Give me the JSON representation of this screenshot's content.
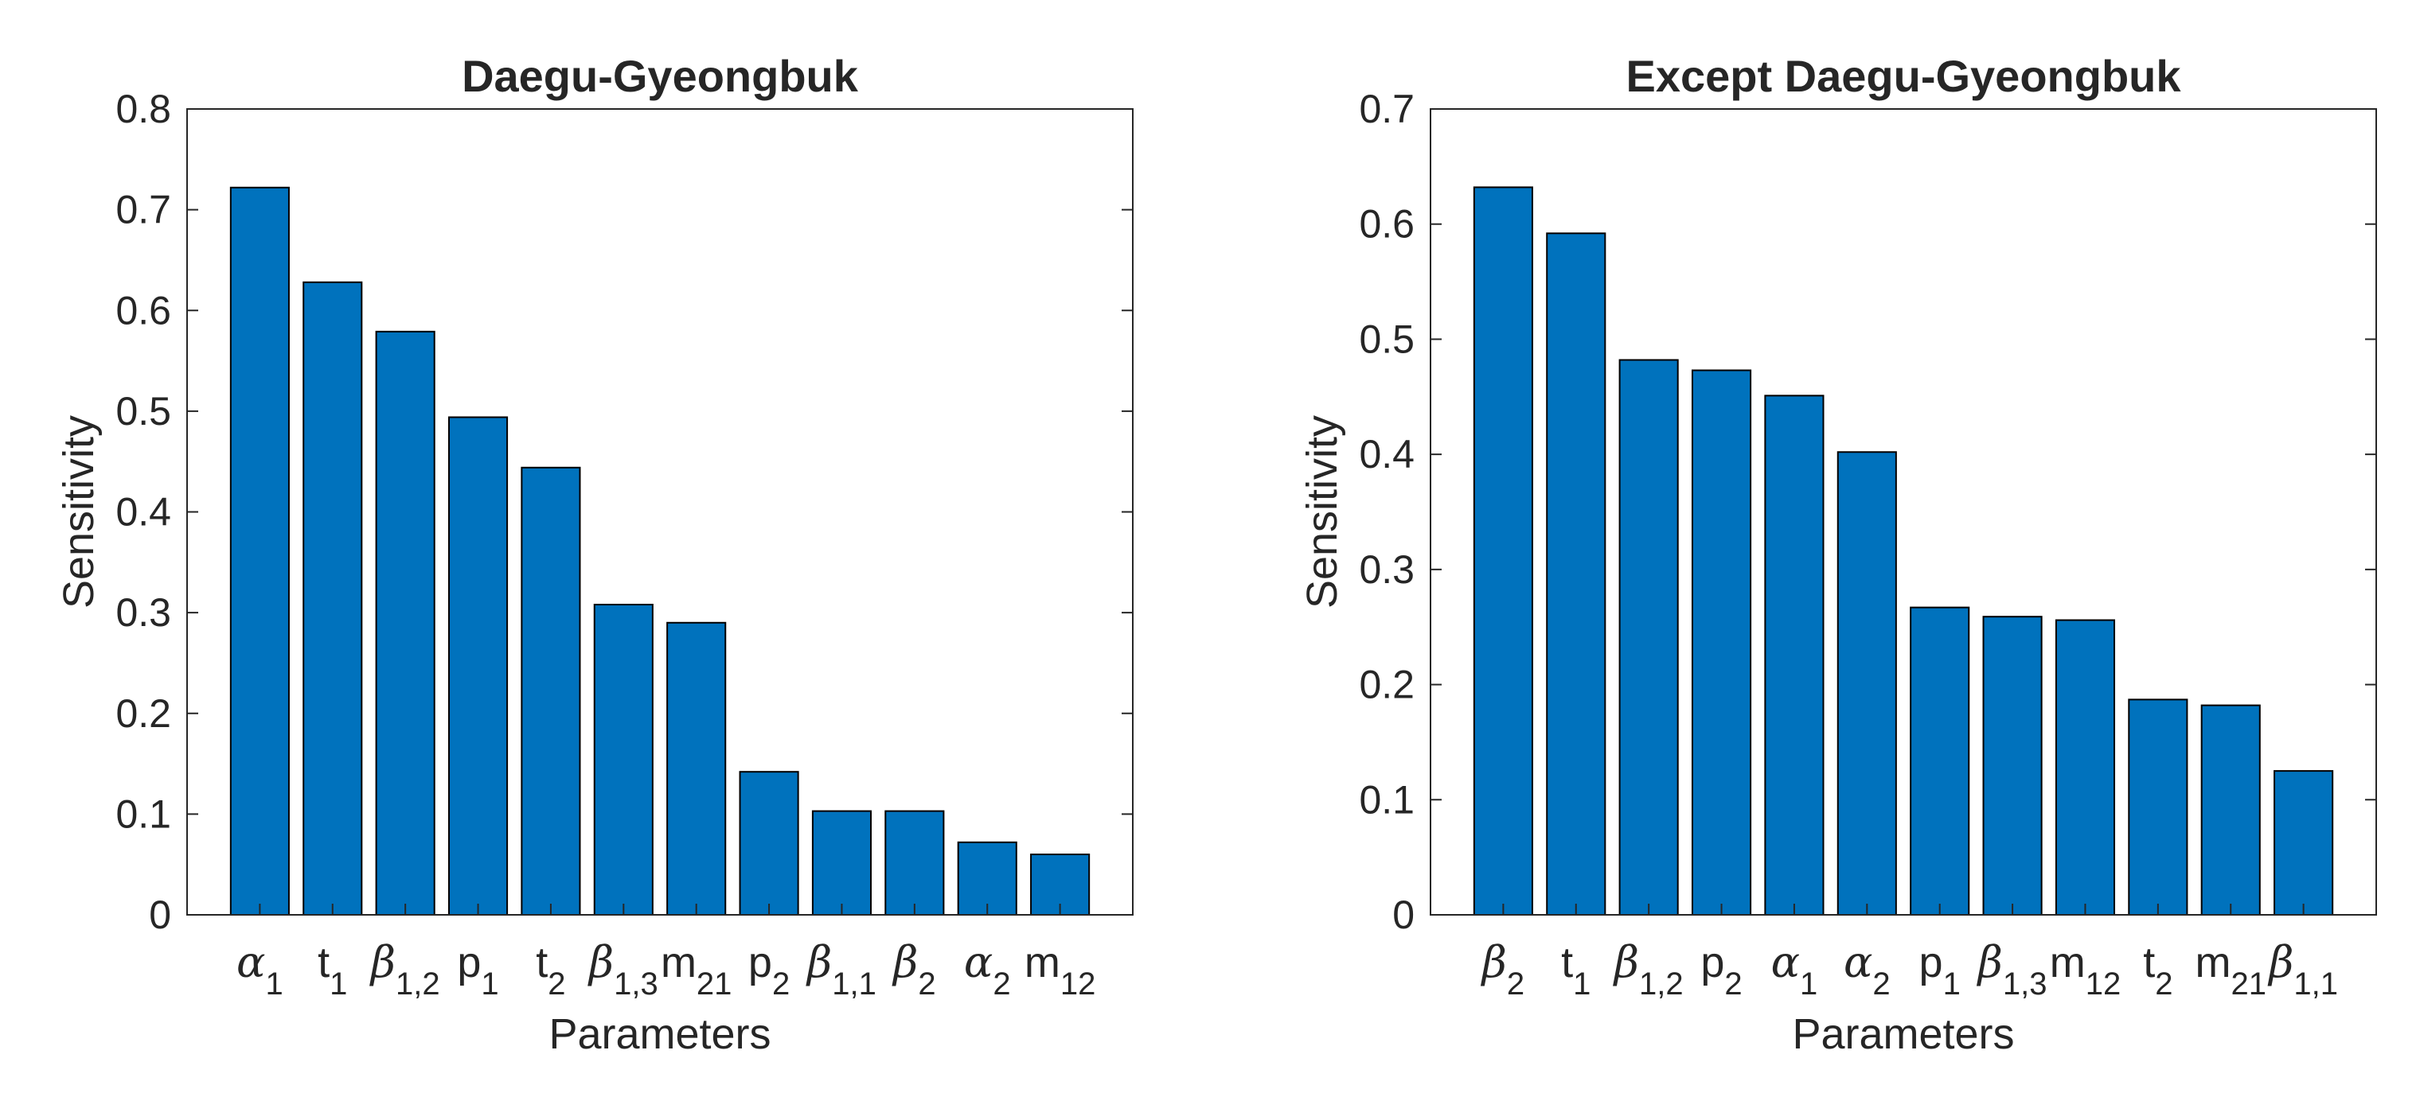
{
  "chart_data": [
    {
      "type": "bar",
      "title": "Daegu-Gyeongbuk",
      "xlabel": "Parameters",
      "ylabel": "Sensitivity",
      "ylim": [
        0,
        0.8
      ],
      "yticks": [
        "0",
        "0.1",
        "0.2",
        "0.3",
        "0.4",
        "0.5",
        "0.6",
        "0.7",
        "0.8"
      ],
      "categories": [
        {
          "base": "α",
          "sub": "1",
          "greek": true
        },
        {
          "base": "t",
          "sub": "1",
          "greek": false
        },
        {
          "base": "β",
          "sub": "1,2",
          "greek": true
        },
        {
          "base": "p",
          "sub": "1",
          "greek": false
        },
        {
          "base": "t",
          "sub": "2",
          "greek": false
        },
        {
          "base": "β",
          "sub": "1,3",
          "greek": true
        },
        {
          "base": "m",
          "sub": "21",
          "greek": false
        },
        {
          "base": "p",
          "sub": "2",
          "greek": false
        },
        {
          "base": "β",
          "sub": "1,1",
          "greek": true
        },
        {
          "base": "β",
          "sub": "2",
          "greek": true
        },
        {
          "base": "α",
          "sub": "2",
          "greek": true
        },
        {
          "base": "m",
          "sub": "12",
          "greek": false
        }
      ],
      "values": [
        0.722,
        0.628,
        0.579,
        0.494,
        0.444,
        0.308,
        0.29,
        0.142,
        0.103,
        0.103,
        0.072,
        0.06
      ],
      "color": "#0072BD",
      "grid": false
    },
    {
      "type": "bar",
      "title": "Except Daegu-Gyeongbuk",
      "xlabel": "Parameters",
      "ylabel": "Sensitivity",
      "ylim": [
        0,
        0.7
      ],
      "yticks": [
        "0",
        "0.1",
        "0.2",
        "0.3",
        "0.4",
        "0.5",
        "0.6",
        "0.7"
      ],
      "categories": [
        {
          "base": "β",
          "sub": "2",
          "greek": true
        },
        {
          "base": "t",
          "sub": "1",
          "greek": false
        },
        {
          "base": "β",
          "sub": "1,2",
          "greek": true
        },
        {
          "base": "p",
          "sub": "2",
          "greek": false
        },
        {
          "base": "α",
          "sub": "1",
          "greek": true
        },
        {
          "base": "α",
          "sub": "2",
          "greek": true
        },
        {
          "base": "p",
          "sub": "1",
          "greek": false
        },
        {
          "base": "β",
          "sub": "1,3",
          "greek": true
        },
        {
          "base": "m",
          "sub": "12",
          "greek": false
        },
        {
          "base": "t",
          "sub": "2",
          "greek": false
        },
        {
          "base": "m",
          "sub": "21",
          "greek": false
        },
        {
          "base": "β",
          "sub": "1,1",
          "greek": true
        }
      ],
      "values": [
        0.632,
        0.592,
        0.482,
        0.473,
        0.451,
        0.402,
        0.267,
        0.259,
        0.256,
        0.187,
        0.182,
        0.125
      ],
      "color": "#0072BD",
      "grid": false
    }
  ]
}
